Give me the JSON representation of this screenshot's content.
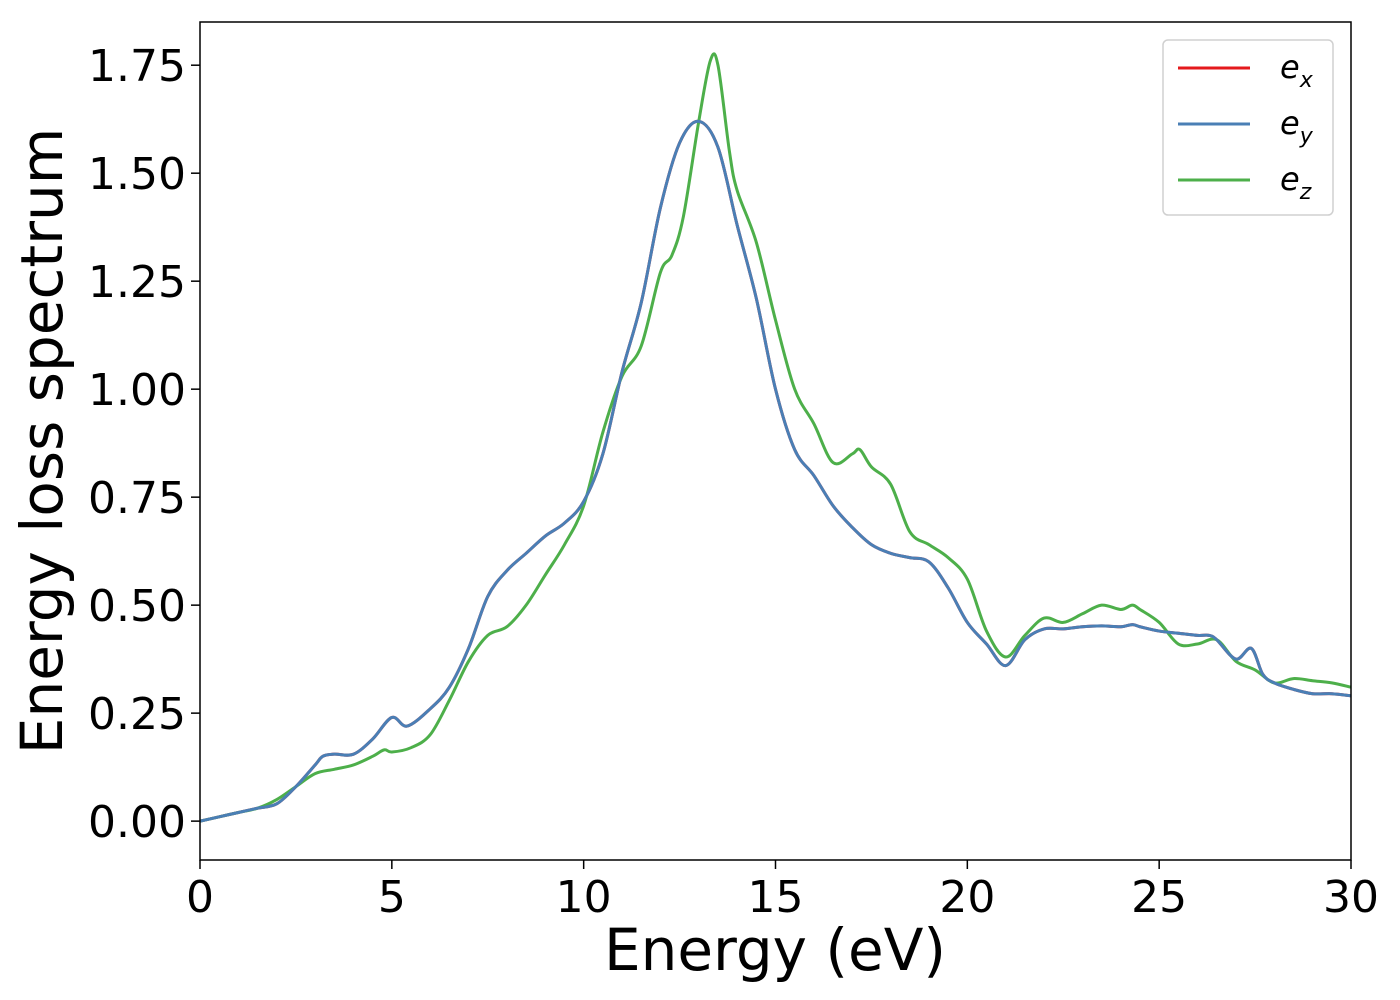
{
  "chart_data": {
    "type": "line",
    "title": "",
    "xlabel": "Energy (eV)",
    "ylabel": "Energy loss spectrum",
    "xlim": [
      0,
      30
    ],
    "ylim": [
      -0.09,
      1.85
    ],
    "xticks": [
      0,
      5,
      10,
      15,
      20,
      25,
      30
    ],
    "xtick_labels": [
      "0",
      "5",
      "10",
      "15",
      "20",
      "25",
      "30"
    ],
    "yticks": [
      0.0,
      0.25,
      0.5,
      0.75,
      1.0,
      1.25,
      1.5,
      1.75
    ],
    "ytick_labels": [
      "0.00",
      "0.25",
      "0.50",
      "0.75",
      "1.00",
      "1.25",
      "1.50",
      "1.75"
    ],
    "grid": false,
    "legend_position": "top-right",
    "series": [
      {
        "name": "e_x",
        "legend_base": "e",
        "legend_sub": "x",
        "color": "#e41a1c",
        "x": [
          0,
          0.5,
          1,
          1.5,
          2,
          2.5,
          3,
          3.2,
          3.5,
          4,
          4.5,
          5,
          5.4,
          6,
          6.5,
          7,
          7.5,
          8,
          8.5,
          9,
          9.5,
          10,
          10.5,
          11,
          11.5,
          12,
          12.5,
          13,
          13.5,
          14,
          14.5,
          15,
          15.5,
          16,
          16.5,
          17,
          17.5,
          18,
          18.5,
          19,
          19.5,
          20,
          20.5,
          21,
          21.5,
          22,
          22.5,
          23,
          23.5,
          24,
          24.3,
          24.5,
          25,
          25.5,
          26,
          26.3,
          26.5,
          27,
          27.4,
          27.7,
          28,
          28.5,
          29,
          29.5,
          30
        ],
        "y": [
          0,
          0.01,
          0.02,
          0.03,
          0.04,
          0.08,
          0.13,
          0.15,
          0.155,
          0.155,
          0.19,
          0.24,
          0.22,
          0.26,
          0.31,
          0.4,
          0.52,
          0.58,
          0.62,
          0.66,
          0.69,
          0.74,
          0.85,
          1.04,
          1.2,
          1.42,
          1.57,
          1.62,
          1.56,
          1.38,
          1.21,
          1.0,
          0.86,
          0.8,
          0.73,
          0.68,
          0.64,
          0.62,
          0.61,
          0.6,
          0.54,
          0.46,
          0.41,
          0.36,
          0.42,
          0.445,
          0.445,
          0.45,
          0.452,
          0.45,
          0.455,
          0.45,
          0.44,
          0.435,
          0.43,
          0.43,
          0.42,
          0.375,
          0.4,
          0.34,
          0.32,
          0.305,
          0.295,
          0.295,
          0.29
        ]
      },
      {
        "name": "e_y",
        "legend_base": "e",
        "legend_sub": "y",
        "color": "#4a7fb5",
        "x": [
          0,
          0.5,
          1,
          1.5,
          2,
          2.5,
          3,
          3.2,
          3.5,
          4,
          4.5,
          5,
          5.4,
          6,
          6.5,
          7,
          7.5,
          8,
          8.5,
          9,
          9.5,
          10,
          10.5,
          11,
          11.5,
          12,
          12.5,
          13,
          13.5,
          14,
          14.5,
          15,
          15.5,
          16,
          16.5,
          17,
          17.5,
          18,
          18.5,
          19,
          19.5,
          20,
          20.5,
          21,
          21.5,
          22,
          22.5,
          23,
          23.5,
          24,
          24.3,
          24.5,
          25,
          25.5,
          26,
          26.3,
          26.5,
          27,
          27.4,
          27.7,
          28,
          28.5,
          29,
          29.5,
          30
        ],
        "y": [
          0,
          0.01,
          0.02,
          0.03,
          0.04,
          0.08,
          0.13,
          0.15,
          0.155,
          0.155,
          0.19,
          0.24,
          0.22,
          0.26,
          0.31,
          0.4,
          0.52,
          0.58,
          0.62,
          0.66,
          0.69,
          0.74,
          0.85,
          1.04,
          1.2,
          1.42,
          1.57,
          1.62,
          1.56,
          1.38,
          1.21,
          1.0,
          0.86,
          0.8,
          0.73,
          0.68,
          0.64,
          0.62,
          0.61,
          0.6,
          0.54,
          0.46,
          0.41,
          0.36,
          0.42,
          0.445,
          0.445,
          0.45,
          0.452,
          0.45,
          0.455,
          0.45,
          0.44,
          0.435,
          0.43,
          0.43,
          0.42,
          0.375,
          0.4,
          0.34,
          0.32,
          0.305,
          0.295,
          0.295,
          0.29
        ]
      },
      {
        "name": "e_z",
        "legend_base": "e",
        "legend_sub": "z",
        "color": "#4daf4a",
        "x": [
          0,
          0.5,
          1,
          1.5,
          2,
          2.5,
          3,
          3.5,
          4,
          4.5,
          4.8,
          5,
          5.5,
          6,
          6.5,
          7,
          7.5,
          8,
          8.5,
          9,
          9.5,
          10,
          10.5,
          11,
          11.5,
          12,
          12.3,
          12.6,
          13,
          13.3,
          13.5,
          13.8,
          14,
          14.5,
          15,
          15.5,
          16,
          16.5,
          17,
          17.2,
          17.5,
          18,
          18.5,
          19,
          19.5,
          20,
          20.5,
          21,
          21.5,
          22,
          22.5,
          23,
          23.5,
          24,
          24.3,
          24.5,
          25,
          25.5,
          26,
          26.5,
          27,
          27.5,
          28,
          28.5,
          29,
          29.5,
          30
        ],
        "y": [
          0,
          0.01,
          0.02,
          0.03,
          0.05,
          0.08,
          0.11,
          0.12,
          0.13,
          0.15,
          0.165,
          0.16,
          0.17,
          0.2,
          0.28,
          0.37,
          0.43,
          0.45,
          0.5,
          0.57,
          0.64,
          0.73,
          0.9,
          1.03,
          1.1,
          1.27,
          1.31,
          1.4,
          1.62,
          1.76,
          1.75,
          1.55,
          1.46,
          1.34,
          1.16,
          1.0,
          0.92,
          0.83,
          0.85,
          0.86,
          0.82,
          0.78,
          0.67,
          0.64,
          0.61,
          0.56,
          0.44,
          0.38,
          0.43,
          0.47,
          0.46,
          0.48,
          0.5,
          0.49,
          0.5,
          0.49,
          0.46,
          0.41,
          0.41,
          0.42,
          0.37,
          0.35,
          0.32,
          0.33,
          0.325,
          0.32,
          0.31
        ]
      }
    ]
  }
}
